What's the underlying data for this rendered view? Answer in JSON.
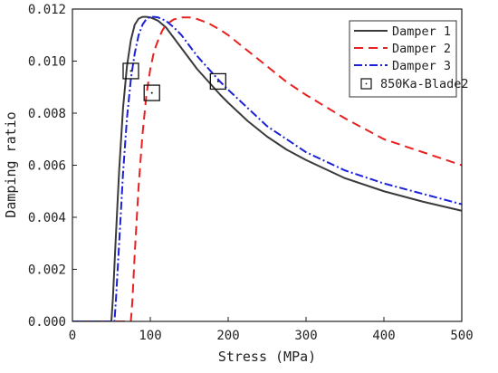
{
  "chart_data": {
    "type": "line",
    "xlabel": "Stress (MPa)",
    "ylabel": "Damping ratio",
    "xlim": [
      0,
      500
    ],
    "ylim": [
      0,
      0.012
    ],
    "xticks": [
      0,
      100,
      200,
      300,
      400,
      500
    ],
    "yticks": [
      0.0,
      0.002,
      0.004,
      0.006,
      0.008,
      0.01,
      0.012
    ],
    "ytick_labels": [
      "0.000",
      "0.002",
      "0.004",
      "0.006",
      "0.008",
      "0.010",
      "0.012"
    ],
    "grid": false,
    "legend": "top-right",
    "series": [
      {
        "name": "Damper 1",
        "color": "#3a3a3a",
        "style": "solid",
        "x": [
          0,
          50,
          52,
          55,
          60,
          65,
          70,
          75,
          80,
          85,
          90,
          95,
          100,
          105,
          110,
          120,
          130,
          140,
          150,
          160,
          175,
          190,
          200,
          225,
          250,
          275,
          300,
          350,
          400,
          450,
          500
        ],
        "y": [
          0.0,
          0.0,
          0.0009,
          0.0028,
          0.0058,
          0.0082,
          0.0098,
          0.0108,
          0.0114,
          0.01163,
          0.0117,
          0.0117,
          0.01168,
          0.01162,
          0.01155,
          0.0113,
          0.0109,
          0.0105,
          0.0101,
          0.0097,
          0.0092,
          0.0087,
          0.0084,
          0.0077,
          0.0071,
          0.0066,
          0.0062,
          0.0055,
          0.005,
          0.0046,
          0.00425
        ]
      },
      {
        "name": "Damper 2",
        "color": "#e8201f",
        "style": "dashed",
        "x": [
          0,
          75,
          77,
          80,
          85,
          90,
          95,
          100,
          105,
          110,
          115,
          120,
          130,
          140,
          150,
          160,
          175,
          190,
          200,
          225,
          250,
          275,
          300,
          350,
          400,
          450,
          500
        ],
        "y": [
          0.0,
          0.0,
          0.0008,
          0.0026,
          0.0052,
          0.0072,
          0.0087,
          0.0097,
          0.0104,
          0.0108,
          0.01115,
          0.0114,
          0.0116,
          0.01168,
          0.01168,
          0.01162,
          0.01145,
          0.0112,
          0.011,
          0.0104,
          0.0098,
          0.0092,
          0.0087,
          0.0078,
          0.007,
          0.0065,
          0.006
        ]
      },
      {
        "name": "Damper 3",
        "color": "#1b22d6",
        "style": "dashdot",
        "x": [
          0,
          54,
          56,
          60,
          65,
          70,
          75,
          80,
          85,
          90,
          95,
          100,
          105,
          110,
          120,
          130,
          140,
          150,
          160,
          175,
          190,
          200,
          225,
          250,
          275,
          300,
          350,
          400,
          450,
          500
        ],
        "y": [
          0.0,
          0.0,
          0.0009,
          0.003,
          0.0057,
          0.0078,
          0.0093,
          0.0103,
          0.011,
          0.0114,
          0.01162,
          0.0117,
          0.0117,
          0.01168,
          0.01155,
          0.0113,
          0.011,
          0.0106,
          0.0102,
          0.0097,
          0.0092,
          0.0089,
          0.0082,
          0.0075,
          0.007,
          0.0065,
          0.0058,
          0.0053,
          0.0049,
          0.0045
        ]
      }
    ],
    "markers": {
      "name": "850Ka-Blade2",
      "symbol": "square-dot",
      "color": "#111111",
      "x": [
        75,
        102,
        187
      ],
      "y": [
        0.00962,
        0.00878,
        0.00922
      ]
    },
    "annotations": []
  }
}
